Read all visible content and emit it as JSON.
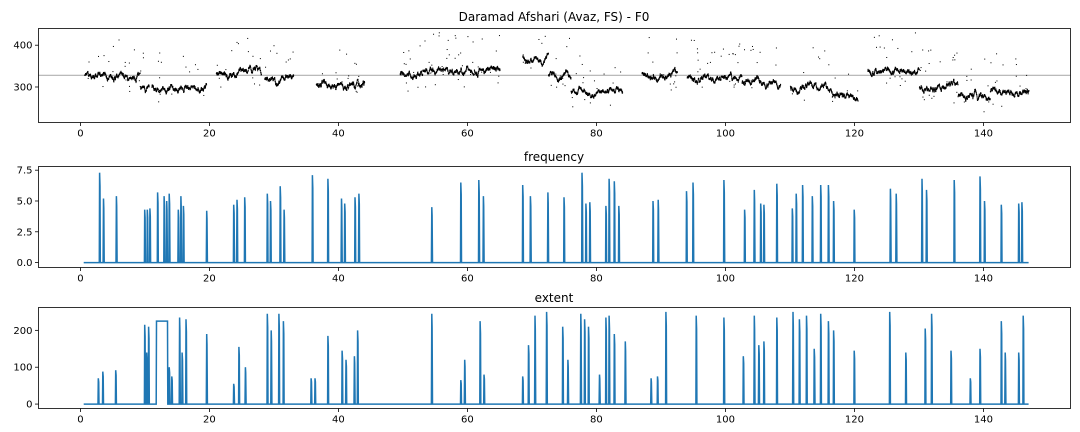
{
  "chart_data": [
    {
      "type": "scatter",
      "title": "Daramad Afshari (Avaz, FS) - F0",
      "xlim": [
        -6.5,
        153.5
      ],
      "ylim": [
        215,
        440
      ],
      "xticks": [
        0,
        20,
        40,
        60,
        80,
        100,
        120,
        140
      ],
      "yticks": [
        300,
        400
      ],
      "reference_line_y": 328,
      "point_color": "#000000",
      "ref_line_color": "#b0b0b0",
      "segments": [
        {
          "x0": 0.6,
          "x1": 9.2,
          "base": 328
        },
        {
          "x0": 9.2,
          "x1": 10.6,
          "base": 300
        },
        {
          "x0": 11.0,
          "x1": 19.5,
          "base": 300
        },
        {
          "x0": 21.0,
          "x1": 28.0,
          "base": 332
        },
        {
          "x0": 28.5,
          "x1": 33.0,
          "base": 320
        },
        {
          "x0": 36.5,
          "x1": 44.0,
          "base": 305
        },
        {
          "x0": 49.5,
          "x1": 53.0,
          "base": 330
        },
        {
          "x0": 53.0,
          "x1": 61.0,
          "base": 340
        },
        {
          "x0": 61.0,
          "x1": 65.0,
          "base": 342
        },
        {
          "x0": 68.5,
          "x1": 72.5,
          "base": 370
        },
        {
          "x0": 72.5,
          "x1": 76.0,
          "base": 330
        },
        {
          "x0": 76.0,
          "x1": 84.0,
          "base": 290
        },
        {
          "x0": 87.0,
          "x1": 92.5,
          "base": 330
        },
        {
          "x0": 94.0,
          "x1": 102.5,
          "base": 325
        },
        {
          "x0": 102.5,
          "x1": 108.5,
          "base": 312
        },
        {
          "x0": 110.0,
          "x1": 116.5,
          "base": 305
        },
        {
          "x0": 116.5,
          "x1": 120.5,
          "base": 278
        },
        {
          "x0": 122.0,
          "x1": 130.0,
          "base": 340
        },
        {
          "x0": 130.0,
          "x1": 136.0,
          "base": 300
        },
        {
          "x0": 136.0,
          "x1": 141.0,
          "base": 278
        },
        {
          "x0": 141.0,
          "x1": 147.0,
          "base": 290
        }
      ]
    },
    {
      "type": "line",
      "title": "frequency",
      "xlim": [
        -6.5,
        153.5
      ],
      "ylim": [
        -0.4,
        7.8
      ],
      "xticks": [
        0,
        20,
        40,
        60,
        80,
        100,
        120,
        140
      ],
      "yticks": [
        0.0,
        2.5,
        5.0,
        7.5
      ],
      "ytick_labels": [
        "0.0",
        "2.5",
        "5.0",
        "7.5"
      ],
      "color": "#1f77b4",
      "x_range": [
        0.5,
        147.0
      ],
      "peaks": [
        [
          3.0,
          7.3
        ],
        [
          3.6,
          5.2
        ],
        [
          5.6,
          5.4
        ],
        [
          10.0,
          4.3
        ],
        [
          10.4,
          4.3
        ],
        [
          10.8,
          4.4
        ],
        [
          12.0,
          5.7
        ],
        [
          13.0,
          5.4
        ],
        [
          13.4,
          5.0
        ],
        [
          13.8,
          5.6
        ],
        [
          15.2,
          4.3
        ],
        [
          15.6,
          5.4
        ],
        [
          16.0,
          4.6
        ],
        [
          19.6,
          4.2
        ],
        [
          23.8,
          4.7
        ],
        [
          24.3,
          5.1
        ],
        [
          25.5,
          5.3
        ],
        [
          29.0,
          5.6
        ],
        [
          29.5,
          5.0
        ],
        [
          31.0,
          6.2
        ],
        [
          31.6,
          4.3
        ],
        [
          36.0,
          7.1
        ],
        [
          38.4,
          6.8
        ],
        [
          40.5,
          5.2
        ],
        [
          41.0,
          4.8
        ],
        [
          42.6,
          5.3
        ],
        [
          43.2,
          5.6
        ],
        [
          54.5,
          4.5
        ],
        [
          59.0,
          6.5
        ],
        [
          61.8,
          6.7
        ],
        [
          62.5,
          5.4
        ],
        [
          68.6,
          6.3
        ],
        [
          69.8,
          5.4
        ],
        [
          72.5,
          5.7
        ],
        [
          75.0,
          5.3
        ],
        [
          77.8,
          7.3
        ],
        [
          78.4,
          4.8
        ],
        [
          79.0,
          4.9
        ],
        [
          81.5,
          4.6
        ],
        [
          82.0,
          6.8
        ],
        [
          82.8,
          6.6
        ],
        [
          83.5,
          4.6
        ],
        [
          88.8,
          5.0
        ],
        [
          89.6,
          5.1
        ],
        [
          94.0,
          5.8
        ],
        [
          95.0,
          6.5
        ],
        [
          99.8,
          6.7
        ],
        [
          103.0,
          4.3
        ],
        [
          104.5,
          5.9
        ],
        [
          105.5,
          4.8
        ],
        [
          106.0,
          4.7
        ],
        [
          108.0,
          6.4
        ],
        [
          110.4,
          4.4
        ],
        [
          111.0,
          5.6
        ],
        [
          112.0,
          6.3
        ],
        [
          113.5,
          5.4
        ],
        [
          114.8,
          6.3
        ],
        [
          116.0,
          6.3
        ],
        [
          116.8,
          5.0
        ],
        [
          120.0,
          4.3
        ],
        [
          125.6,
          6.0
        ],
        [
          126.5,
          5.6
        ],
        [
          130.5,
          6.8
        ],
        [
          131.2,
          5.9
        ],
        [
          135.5,
          6.7
        ],
        [
          139.5,
          7.0
        ],
        [
          140.2,
          5.0
        ],
        [
          142.8,
          4.7
        ],
        [
          145.5,
          4.8
        ],
        [
          146.0,
          4.9
        ]
      ]
    },
    {
      "type": "line",
      "title": "extent",
      "xlim": [
        -6.5,
        153.5
      ],
      "ylim": [
        -12,
        262
      ],
      "xticks": [
        0,
        20,
        40,
        60,
        80,
        100,
        120,
        140
      ],
      "yticks": [
        0,
        100,
        200
      ],
      "color": "#1f77b4",
      "x_range": [
        0.5,
        147.0
      ],
      "plateau": {
        "x0": 11.8,
        "x1": 13.5,
        "y": 225
      },
      "peaks": [
        [
          2.8,
          70
        ],
        [
          3.5,
          88
        ],
        [
          5.5,
          92
        ],
        [
          10.0,
          215
        ],
        [
          10.3,
          140
        ],
        [
          10.6,
          210
        ],
        [
          13.8,
          100
        ],
        [
          14.2,
          75
        ],
        [
          15.4,
          235
        ],
        [
          15.8,
          140
        ],
        [
          16.4,
          230
        ],
        [
          19.6,
          190
        ],
        [
          23.8,
          55
        ],
        [
          24.6,
          155
        ],
        [
          25.6,
          100
        ],
        [
          29.0,
          245
        ],
        [
          29.6,
          200
        ],
        [
          30.8,
          245
        ],
        [
          31.5,
          225
        ],
        [
          35.8,
          70
        ],
        [
          36.4,
          70
        ],
        [
          38.4,
          185
        ],
        [
          40.6,
          145
        ],
        [
          41.2,
          120
        ],
        [
          42.5,
          130
        ],
        [
          43.0,
          200
        ],
        [
          54.5,
          245
        ],
        [
          59.0,
          65
        ],
        [
          59.6,
          120
        ],
        [
          62.0,
          225
        ],
        [
          62.6,
          80
        ],
        [
          68.6,
          75
        ],
        [
          69.5,
          160
        ],
        [
          70.5,
          240
        ],
        [
          72.3,
          250
        ],
        [
          74.8,
          210
        ],
        [
          75.6,
          120
        ],
        [
          77.6,
          245
        ],
        [
          78.2,
          230
        ],
        [
          78.8,
          210
        ],
        [
          80.5,
          80
        ],
        [
          81.5,
          235
        ],
        [
          82.0,
          240
        ],
        [
          82.8,
          190
        ],
        [
          84.5,
          170
        ],
        [
          88.5,
          70
        ],
        [
          89.5,
          75
        ],
        [
          90.8,
          250
        ],
        [
          95.5,
          240
        ],
        [
          99.8,
          235
        ],
        [
          102.8,
          130
        ],
        [
          104.5,
          240
        ],
        [
          105.2,
          160
        ],
        [
          106.0,
          170
        ],
        [
          108.0,
          235
        ],
        [
          110.5,
          250
        ],
        [
          111.5,
          230
        ],
        [
          112.6,
          240
        ],
        [
          113.8,
          150
        ],
        [
          114.8,
          245
        ],
        [
          116.0,
          225
        ],
        [
          116.8,
          200
        ],
        [
          120.0,
          145
        ],
        [
          125.5,
          250
        ],
        [
          128.0,
          140
        ],
        [
          131.0,
          205
        ],
        [
          132.0,
          245
        ],
        [
          135.0,
          145
        ],
        [
          138.0,
          70
        ],
        [
          139.5,
          150
        ],
        [
          142.8,
          225
        ],
        [
          143.4,
          140
        ],
        [
          145.5,
          140
        ],
        [
          146.2,
          240
        ]
      ]
    }
  ]
}
